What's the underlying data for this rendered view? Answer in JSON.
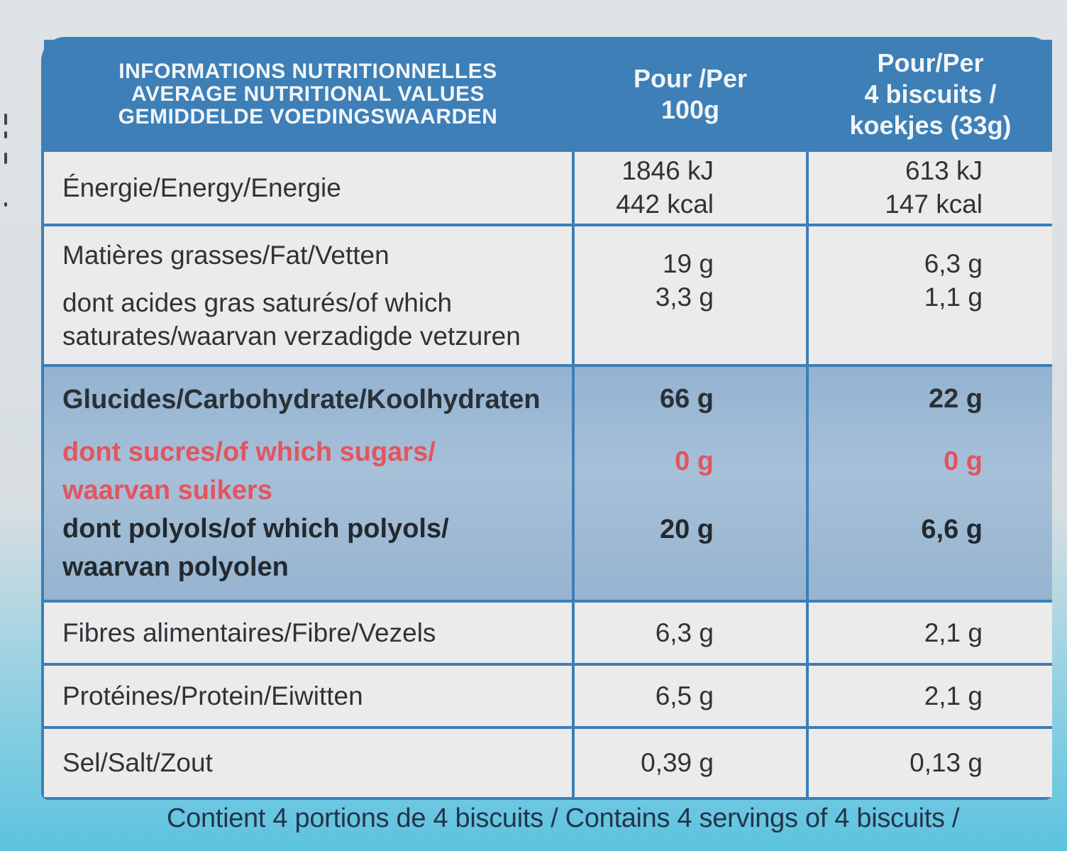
{
  "header": {
    "title_lines": [
      "INFORMATIONS NUTRITIONNELLES",
      "AVERAGE NUTRITIONAL VALUES",
      "GEMIDDELDE VOEDINGSWAARDEN"
    ],
    "per100_lines": [
      "Pour /Per",
      "100g"
    ],
    "perPortion_lines": [
      "Pour/Per",
      "4 biscuits /",
      "koekjes (33g)"
    ]
  },
  "rows": {
    "energy": {
      "label": "Énergie/Energy/Energie",
      "per100": [
        "1846 kJ",
        "442 kcal"
      ],
      "perPortion": [
        "613 kJ",
        "147 kcal"
      ]
    },
    "fat": {
      "label": "Matières grasses/Fat/Vetten",
      "per100": "19 g",
      "perPortion": "6,3 g"
    },
    "saturates": {
      "label_lines": [
        "dont acides gras saturés/of which",
        "saturates/waarvan verzadigde vetzuren"
      ],
      "per100": "3,3 g",
      "perPortion": "1,1 g"
    },
    "carbs": {
      "label": "Glucides/Carbohydrate/Koolhydraten",
      "per100": "66 g",
      "perPortion": "22 g"
    },
    "sugars": {
      "label_lines": [
        "dont sucres/of which sugars/",
        "waarvan suikers"
      ],
      "per100": "0 g",
      "perPortion": "0 g"
    },
    "polyols": {
      "label_lines": [
        "dont polyols/of which polyols/",
        "waarvan polyolen"
      ],
      "per100": "20 g",
      "perPortion": "6,6 g"
    },
    "fibre": {
      "label": "Fibres alimentaires/Fibre/Vezels",
      "per100": "6,3 g",
      "perPortion": "2,1 g"
    },
    "protein": {
      "label": "Protéines/Protein/Eiwitten",
      "per100": "6,5 g",
      "perPortion": "2,1 g"
    },
    "salt": {
      "label": "Sel/Salt/Zout",
      "per100": "0,39 g",
      "perPortion": "0,13 g"
    }
  },
  "footer": "Contient 4 portions de 4 biscuits / Contains 4 servings of 4 biscuits /",
  "colors": {
    "panel": "#3d7fb6",
    "sugars": "#e3545f",
    "white_cell": "#ebebeb"
  }
}
